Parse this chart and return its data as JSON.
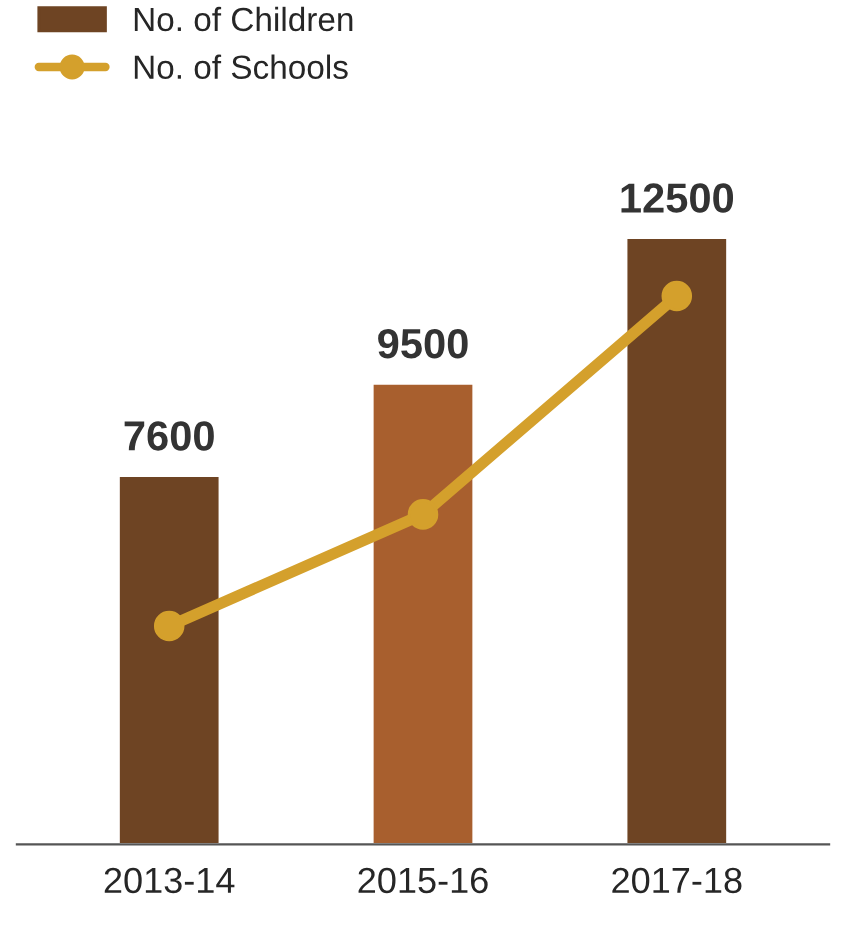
{
  "chart_data": {
    "type": "bar",
    "categories": [
      "2013-14",
      "2015-16",
      "2017-18"
    ],
    "legend": "top left",
    "grid": false,
    "series": [
      {
        "name": "No. of Children",
        "colors": [
          "#6e4423",
          "#a85f2e",
          "#6e4423"
        ],
        "color": "#6e4423",
        "values": [
          7600,
          9500,
          12500
        ],
        "value_labels": [
          "7600",
          "9500",
          "12500"
        ]
      },
      {
        "name": "No. of Schools",
        "type": "line",
        "color": "#d4a02c",
        "marker": "circle",
        "values": [
          4500,
          6800,
          11300
        ]
      }
    ]
  }
}
